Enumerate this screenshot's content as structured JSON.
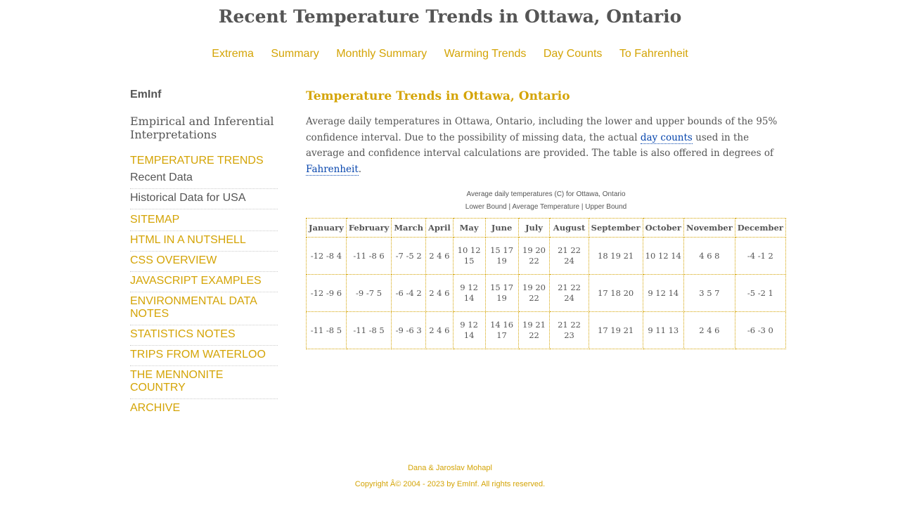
{
  "site_title": "Recent Temperature Trends in Ottawa, Ontario",
  "top_nav": [
    "Extrema",
    "Summary",
    "Monthly Summary",
    "Warming Trends",
    "Day Counts",
    "To Fahrenheit"
  ],
  "sidebar": {
    "brand": "EmInf",
    "tagline": "Empirical and Inferential Interpretations",
    "items": [
      {
        "label": "TEMPERATURE TRENDS"
      },
      {
        "label": "Recent Data"
      },
      {
        "label": "Historical Data for USA"
      },
      {
        "label": "SITEMAP"
      },
      {
        "label": "HTML IN A NUTSHELL"
      },
      {
        "label": "CSS OVERVIEW"
      },
      {
        "label": "JAVASCRIPT EXAMPLES"
      },
      {
        "label": "ENVIRONMENTAL DATA NOTES"
      },
      {
        "label": "STATISTICS NOTES"
      },
      {
        "label": "TRIPS FROM WATERLOO"
      },
      {
        "label": "THE MENNONITE COUNTRY"
      },
      {
        "label": "ARCHIVE"
      }
    ]
  },
  "content": {
    "title": "Temperature Trends in Ottawa, Ontario",
    "intro_part1": "Average daily temperatures in Ottawa, Ontario, including the lower and upper bounds of the 95% confidence interval. Due to the possibility of missing data, the actual ",
    "intro_link1": "day counts",
    "intro_part2": " used in the average and confidence interval calculations are provided. The table is also offered in degrees of ",
    "intro_link2": "Fahrenheit",
    "intro_part3": ".",
    "caption_line1": "Average daily temperatures (C) for Ottawa, Ontario",
    "caption_line2": "Lower Bound | Average Temperature | Upper Bound"
  },
  "chart_data": {
    "type": "table",
    "columns": [
      "January",
      "February",
      "March",
      "April",
      "May",
      "June",
      "July",
      "August",
      "September",
      "October",
      "November",
      "December"
    ],
    "rows": [
      [
        "-12 -8 4",
        "-11 -8 6",
        "-7 -5 2",
        "2 4 6",
        "10 12 15",
        "15 17 19",
        "19 20 22",
        "21 22 24",
        "18 19 21",
        "10 12 14",
        "4 6 8",
        "-4 -1 2"
      ],
      [
        "-12 -9 6",
        "-9 -7 5",
        "-6 -4 2",
        "2 4 6",
        "9 12 14",
        "15 17 19",
        "19 20 22",
        "21 22 24",
        "17 18 20",
        "9 12 14",
        "3 5 7",
        "-5 -2 1"
      ],
      [
        "-11 -8 5",
        "-11 -8 5",
        "-9 -6 3",
        "2 4 6",
        "9 12 14",
        "14 16 17",
        "19 21 22",
        "21 22 23",
        "17 19 21",
        "9 11 13",
        "2 4 6",
        "-6 -3 0"
      ]
    ]
  },
  "footer": {
    "authors": "Dana & Jaroslav Mohapl",
    "copyright": "Copyright Â© 2004 - 2023 by EmInf. All rights reserved."
  },
  "colors": {
    "accent": "#d4a406",
    "text": "#555555",
    "link": "#0645ad"
  }
}
